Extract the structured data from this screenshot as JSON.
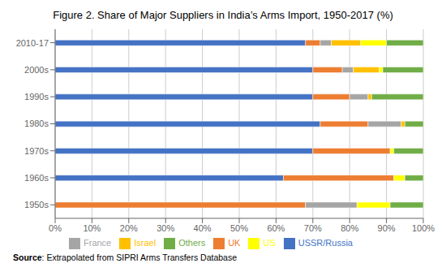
{
  "chart_data": {
    "type": "bar",
    "orientation": "horizontal",
    "stacked": true,
    "title": "Figure 2. Share of Major Suppliers in India’s Arms Import, 1950-2017 (%)",
    "annotations": [
      "Source",
      ": Extrapolated from SIPRI Arms Transfers Database"
    ],
    "categories": [
      "1950s",
      "1960s",
      "1970s",
      "1980s",
      "1990s",
      "2000s",
      "2010-17"
    ],
    "series": [
      {
        "name": "USSR/Russia",
        "color": "#4472c4",
        "values": [
          0,
          62,
          70,
          72,
          70,
          70,
          68
        ]
      },
      {
        "name": "UK",
        "color": "#ed7d31",
        "values": [
          68,
          30,
          21,
          13,
          10,
          8,
          4
        ]
      },
      {
        "name": "France",
        "color": "#a5a5a5",
        "values": [
          14,
          0,
          0,
          9,
          5,
          3,
          3
        ]
      },
      {
        "name": "Israel",
        "color": "#ffc000",
        "values": [
          0,
          0,
          0,
          1,
          1,
          7,
          8
        ]
      },
      {
        "name": "US",
        "color": "#ffff00",
        "values": [
          9,
          3,
          1,
          0,
          0,
          1,
          7
        ]
      },
      {
        "name": "Others",
        "color": "#70ad47",
        "values": [
          9,
          5,
          8,
          5,
          14,
          11,
          10
        ]
      }
    ],
    "xlim": [
      0,
      100
    ],
    "xticks": [
      {
        "value": 0,
        "label": "0%"
      },
      {
        "value": 10,
        "label": "10%"
      },
      {
        "value": 20,
        "label": "20%"
      },
      {
        "value": 30,
        "label": "30%"
      },
      {
        "value": 40,
        "label": "40%"
      },
      {
        "value": 50,
        "label": "50%"
      },
      {
        "value": 60,
        "label": "60%"
      },
      {
        "value": 70,
        "label": "70%"
      },
      {
        "value": 80,
        "label": "80%"
      },
      {
        "value": 90,
        "label": "90%"
      },
      {
        "value": 100,
        "label": "100%"
      }
    ],
    "grid": true,
    "legend": "bottom"
  }
}
